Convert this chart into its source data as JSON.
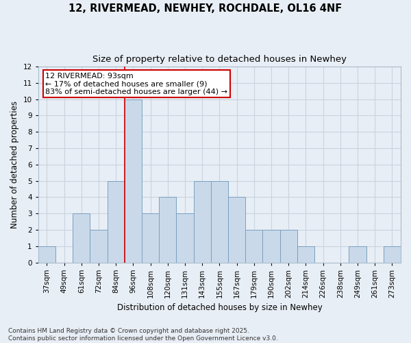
{
  "title1": "12, RIVERMEAD, NEWHEY, ROCHDALE, OL16 4NF",
  "title2": "Size of property relative to detached houses in Newhey",
  "xlabel": "Distribution of detached houses by size in Newhey",
  "ylabel": "Number of detached properties",
  "categories": [
    "37sqm",
    "49sqm",
    "61sqm",
    "72sqm",
    "84sqm",
    "96sqm",
    "108sqm",
    "120sqm",
    "131sqm",
    "143sqm",
    "155sqm",
    "167sqm",
    "179sqm",
    "190sqm",
    "202sqm",
    "214sqm",
    "226sqm",
    "238sqm",
    "249sqm",
    "261sqm",
    "273sqm"
  ],
  "values": [
    1,
    0,
    3,
    2,
    5,
    10,
    3,
    4,
    3,
    5,
    5,
    4,
    2,
    2,
    2,
    1,
    0,
    0,
    1,
    0,
    1
  ],
  "bar_color": "#c9d9ea",
  "bar_edge_color": "#7aa0c0",
  "grid_color": "#c8d4e0",
  "background_color": "#e8eef5",
  "property_line_index": 5,
  "property_label": "12 RIVERMEAD: 93sqm",
  "annotation_line1": "← 17% of detached houses are smaller (9)",
  "annotation_line2": "83% of semi-detached houses are larger (44) →",
  "annotation_box_color": "#ffffff",
  "annotation_box_edge": "#cc0000",
  "annotation_text_color": "#000000",
  "vline_color": "#cc0000",
  "ylim": [
    0,
    12
  ],
  "yticks": [
    0,
    1,
    2,
    3,
    4,
    5,
    6,
    7,
    8,
    9,
    10,
    11,
    12
  ],
  "footer": "Contains HM Land Registry data © Crown copyright and database right 2025.\nContains public sector information licensed under the Open Government Licence v3.0.",
  "title_fontsize": 10.5,
  "subtitle_fontsize": 9.5,
  "axis_label_fontsize": 8.5,
  "tick_fontsize": 7.5,
  "annotation_fontsize": 8,
  "footer_fontsize": 6.5
}
